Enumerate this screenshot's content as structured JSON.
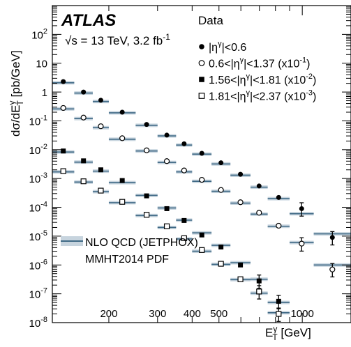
{
  "chart_data": {
    "type": "scatter",
    "title": "",
    "experiment": "ATLAS",
    "energy_label": "√s = 13 TeV, 3.2 fb",
    "lumi_sup": "-1",
    "xlabel": "E",
    "xlabel_sup": "γ",
    "xlabel_sub": "T",
    "xlabel_unit": " [GeV]",
    "ylabel": "dσ/dE",
    "ylabel_sup": "γ",
    "ylabel_sub": "T",
    "ylabel_unit": " [pb/GeV]",
    "x_scale": "log",
    "y_scale": "log",
    "xlim": [
      125,
      1500
    ],
    "ylim": [
      1e-08,
      1000
    ],
    "x_ticks": [
      200,
      300,
      400,
      500,
      1000
    ],
    "y_ticks": [
      {
        "value": 1e-08,
        "base": "10",
        "exp": "-8"
      },
      {
        "value": 1e-07,
        "base": "10",
        "exp": "-7"
      },
      {
        "value": 1e-06,
        "base": "10",
        "exp": "-6"
      },
      {
        "value": 1e-05,
        "base": "10",
        "exp": "-5"
      },
      {
        "value": 0.0001,
        "base": "10",
        "exp": "-4"
      },
      {
        "value": 0.001,
        "base": "10",
        "exp": "-3"
      },
      {
        "value": 0.01,
        "base": "10",
        "exp": "-2"
      },
      {
        "value": 0.1,
        "base": "10",
        "exp": "-1"
      },
      {
        "value": 1,
        "base": "1",
        "exp": ""
      },
      {
        "value": 10,
        "base": "10",
        "exp": ""
      },
      {
        "value": 100,
        "base": "10",
        "exp": "2"
      }
    ],
    "legend_title": "Data",
    "legend_placement": "top-right",
    "nlo_legend": [
      "NLO QCD (JETPHOX)",
      "MMHT2014 PDF"
    ],
    "bin_edges": [
      125,
      150,
      175,
      200,
      250,
      300,
      350,
      400,
      470,
      550,
      650,
      750,
      900,
      1100,
      1500
    ],
    "series": [
      {
        "name": "|η|<0.6",
        "name_parts": [
          "|η",
          "γ",
          "|<0.6",
          ""
        ],
        "marker": "filled-circle",
        "data": [
          2.3,
          1.0,
          0.52,
          0.2,
          0.075,
          0.032,
          0.016,
          0.0075,
          0.0035,
          0.0014,
          0.00055,
          0.00022,
          9e-05,
          9e-06
        ],
        "nlo": [
          2.1,
          0.92,
          0.47,
          0.19,
          0.07,
          0.03,
          0.0145,
          0.007,
          0.0032,
          0.0013,
          0.0005,
          0.0002,
          6e-05,
          1.2e-05
        ]
      },
      {
        "name": "0.6<|η|<1.37 (x10-1)",
        "name_parts": [
          "0.6<|η",
          "γ",
          "|<1.37 (x10",
          "-1",
          ")"
        ],
        "marker": "open-circle",
        "data": [
          0.28,
          0.13,
          0.065,
          0.025,
          0.0095,
          0.004,
          0.0019,
          0.0009,
          0.0004,
          0.00015,
          6.5e-05,
          2.3e-05,
          5.5e-06,
          7e-07
        ],
        "nlo": [
          0.26,
          0.12,
          0.058,
          0.023,
          0.009,
          0.0036,
          0.0017,
          0.0008,
          0.00036,
          0.00014,
          5.8e-05,
          2.2e-05,
          6e-06,
          1e-06
        ]
      },
      {
        "name": "1.56<|η|<1.81 (x10-2)",
        "name_parts": [
          "1.56<|η",
          "γ",
          "|<1.81 (x10",
          "-2",
          ")"
        ],
        "marker": "filled-square",
        "data": [
          0.009,
          0.0041,
          0.002,
          0.00085,
          0.00025,
          9e-05,
          3.5e-05,
          1.1e-05,
          4.2e-06,
          1e-06,
          2.8e-07,
          5.5e-08
        ],
        "nlo": [
          0.0083,
          0.0037,
          0.0018,
          0.00072,
          0.00026,
          9.5e-05,
          3.6e-05,
          1.3e-05,
          4.8e-06,
          1.2e-06,
          3.2e-07,
          5e-08
        ]
      },
      {
        "name": "1.81<|η|<2.37 (x10-3)",
        "name_parts": [
          "1.81<|η",
          "γ",
          "|<2.37 (x10",
          "-3",
          ")"
        ],
        "marker": "open-square",
        "data": [
          0.0018,
          0.0008,
          0.00038,
          0.000155,
          5.5e-05,
          2.2e-05,
          8.5e-06,
          3.3e-06,
          1.1e-06,
          3.2e-07,
          1.2e-07,
          2e-08
        ],
        "nlo": [
          0.0017,
          0.00075,
          0.00035,
          0.000145,
          5.2e-05,
          2e-05,
          8e-06,
          3e-06,
          1.05e-06,
          3.1e-07,
          1.05e-07,
          2.2e-08
        ]
      }
    ],
    "colors": {
      "band": "#c7d4de",
      "nlo_line": "#3f6985",
      "marker": "#000000"
    }
  }
}
